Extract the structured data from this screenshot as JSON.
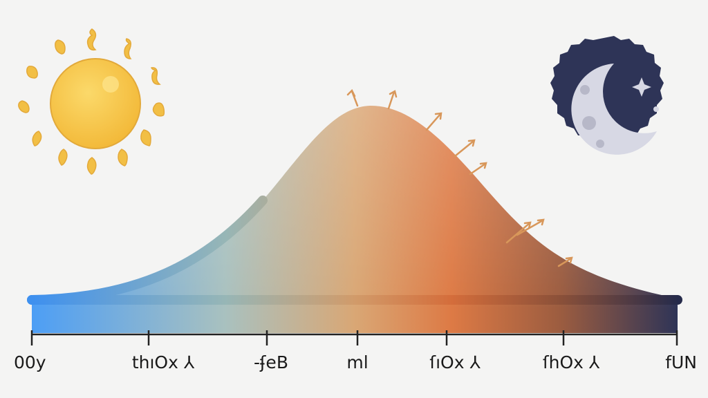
{
  "scene": {
    "background": "#f4f4f3",
    "gradient_colors": [
      "#4d9ef5",
      "#a9c1bf",
      "#d9a775",
      "#dd7a45",
      "#9b5c40",
      "#2e3457"
    ],
    "sun": {
      "icon": "sun-icon",
      "color": "#f7c544"
    },
    "moon": {
      "icon": "crescent-moon-icon",
      "badge_color": "#2e3457",
      "moon_color": "#d7d8e4",
      "star_icon": "sparkle-star-icon"
    },
    "arrow_color": "#d8975a"
  },
  "axis": {
    "tick_labels": [
      "00y",
      "thıOx ⅄",
      "-ʄeB",
      "ml",
      "ſıOx ⅄",
      "ſhOx ⅄",
      "fUN"
    ]
  }
}
